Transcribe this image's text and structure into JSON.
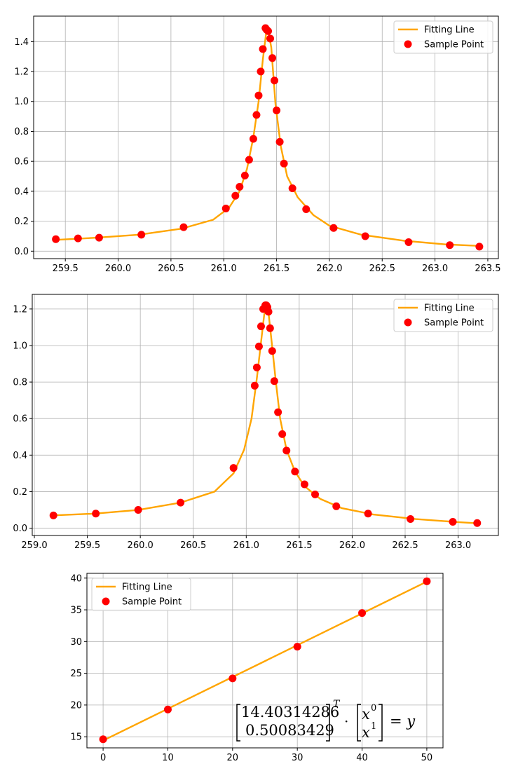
{
  "colors": {
    "fit_line": "#ffa500",
    "sample_point": "#ff0000",
    "grid": "#b0b0b0"
  },
  "chart_data": [
    {
      "type": "line",
      "legend": {
        "placement": "top-right",
        "entries": [
          "Fitting Line",
          "Sample Point"
        ]
      },
      "grid": true,
      "xlim": [
        259.2,
        263.6
      ],
      "ylim": [
        -0.05,
        1.57
      ],
      "xticks": [
        259.5,
        260.0,
        260.5,
        261.0,
        261.5,
        262.0,
        262.5,
        263.0,
        263.5
      ],
      "xtick_labels": [
        "259.5",
        "260.0",
        "260.5",
        "261.0",
        "261.5",
        "262.0",
        "262.5",
        "263.0",
        "263.5"
      ],
      "yticks": [
        0.0,
        0.2,
        0.4,
        0.6,
        0.8,
        1.0,
        1.2,
        1.4
      ],
      "ytick_labels": [
        "0.0",
        "0.2",
        "0.4",
        "0.6",
        "0.8",
        "1.0",
        "1.2",
        "1.4"
      ],
      "series": [
        {
          "name": "Fitting Line",
          "kind": "line",
          "x": [
            259.4,
            259.8,
            260.2,
            260.6,
            260.9,
            261.05,
            261.15,
            261.22,
            261.28,
            261.33,
            261.37,
            261.4,
            261.42,
            261.45,
            261.49,
            261.54,
            261.6,
            261.7,
            261.85,
            262.0,
            262.3,
            262.7,
            263.1,
            263.42
          ],
          "y": [
            0.075,
            0.09,
            0.11,
            0.15,
            0.21,
            0.29,
            0.4,
            0.55,
            0.76,
            1.0,
            1.28,
            1.45,
            1.48,
            1.36,
            0.98,
            0.7,
            0.5,
            0.36,
            0.24,
            0.17,
            0.11,
            0.07,
            0.045,
            0.035
          ]
        },
        {
          "name": "Sample Point",
          "kind": "scatter",
          "x": [
            259.41,
            259.62,
            259.82,
            260.22,
            260.62,
            261.02,
            261.11,
            261.15,
            261.2,
            261.24,
            261.28,
            261.31,
            261.33,
            261.35,
            261.37,
            261.395,
            261.405,
            261.42,
            261.44,
            261.46,
            261.48,
            261.5,
            261.53,
            261.57,
            261.65,
            261.78,
            262.04,
            262.34,
            262.75,
            263.14,
            263.42
          ],
          "y": [
            0.08,
            0.085,
            0.09,
            0.11,
            0.16,
            0.285,
            0.37,
            0.43,
            0.505,
            0.61,
            0.75,
            0.91,
            1.04,
            1.2,
            1.35,
            1.49,
            1.48,
            1.47,
            1.42,
            1.29,
            1.14,
            0.94,
            0.73,
            0.585,
            0.42,
            0.28,
            0.155,
            0.1,
            0.06,
            0.04,
            0.03
          ]
        }
      ]
    },
    {
      "type": "line",
      "legend": {
        "placement": "top-right",
        "entries": [
          "Fitting Line",
          "Sample Point"
        ]
      },
      "grid": true,
      "xlim": [
        258.98,
        263.38
      ],
      "ylim": [
        -0.04,
        1.28
      ],
      "xticks": [
        259.0,
        259.5,
        260.0,
        260.5,
        261.0,
        261.5,
        262.0,
        262.5,
        263.0
      ],
      "xtick_labels": [
        "259.0",
        "259.5",
        "260.0",
        "260.5",
        "261.0",
        "261.5",
        "262.0",
        "262.5",
        "263.0"
      ],
      "yticks": [
        0.0,
        0.2,
        0.4,
        0.6,
        0.8,
        1.0,
        1.2
      ],
      "ytick_labels": [
        "0.0",
        "0.2",
        "0.4",
        "0.6",
        "0.8",
        "1.0",
        "1.2"
      ],
      "series": [
        {
          "name": "Fitting Line",
          "kind": "line",
          "x": [
            259.18,
            259.58,
            259.98,
            260.38,
            260.7,
            260.88,
            260.98,
            261.05,
            261.1,
            261.14,
            261.17,
            261.19,
            261.21,
            261.24,
            261.28,
            261.32,
            261.38,
            261.46,
            261.55,
            261.7,
            261.9,
            262.2,
            262.6,
            263.0,
            263.18
          ],
          "y": [
            0.07,
            0.08,
            0.1,
            0.14,
            0.2,
            0.3,
            0.43,
            0.6,
            0.82,
            1.02,
            1.17,
            1.21,
            1.18,
            1.02,
            0.8,
            0.6,
            0.43,
            0.31,
            0.23,
            0.16,
            0.11,
            0.075,
            0.05,
            0.033,
            0.027
          ]
        },
        {
          "name": "Sample Point",
          "kind": "scatter",
          "x": [
            259.18,
            259.58,
            259.98,
            260.38,
            260.88,
            261.08,
            261.1,
            261.12,
            261.14,
            261.16,
            261.18,
            261.19,
            261.2,
            261.21,
            261.225,
            261.245,
            261.265,
            261.3,
            261.34,
            261.38,
            261.46,
            261.55,
            261.65,
            261.85,
            262.15,
            262.55,
            262.95,
            263.18
          ],
          "y": [
            0.07,
            0.08,
            0.1,
            0.14,
            0.33,
            0.78,
            0.88,
            0.995,
            1.105,
            1.2,
            1.22,
            1.22,
            1.21,
            1.185,
            1.095,
            0.97,
            0.805,
            0.635,
            0.515,
            0.425,
            0.31,
            0.24,
            0.185,
            0.12,
            0.08,
            0.05,
            0.035,
            0.028
          ]
        }
      ]
    },
    {
      "type": "line",
      "legend": {
        "placement": "top-left",
        "entries": [
          "Fitting Line",
          "Sample Point"
        ]
      },
      "grid": true,
      "xlim": [
        -2.5,
        52.5
      ],
      "ylim": [
        13.25,
        40.75
      ],
      "xticks": [
        0,
        10,
        20,
        30,
        40,
        50
      ],
      "xtick_labels": [
        "0",
        "10",
        "20",
        "30",
        "40",
        "50"
      ],
      "yticks": [
        15,
        20,
        25,
        30,
        35,
        40
      ],
      "ytick_labels": [
        "15",
        "20",
        "25",
        "30",
        "35",
        "40"
      ],
      "series": [
        {
          "name": "Fitting Line",
          "kind": "line",
          "x": [
            0,
            50
          ],
          "y": [
            14.40314286,
            39.44485736
          ]
        },
        {
          "name": "Sample Point",
          "kind": "scatter",
          "x": [
            0,
            10,
            20,
            30,
            40,
            50
          ],
          "y": [
            14.6,
            19.3,
            24.2,
            29.2,
            34.5,
            39.5
          ]
        }
      ],
      "annotation": {
        "coef_top": "14.40314286",
        "coef_bottom": "0.50083429",
        "sup_T": "T",
        "dot": "·",
        "var_x": "x",
        "exp0": "0",
        "exp1": "1",
        "rhs": "= y"
      }
    }
  ]
}
